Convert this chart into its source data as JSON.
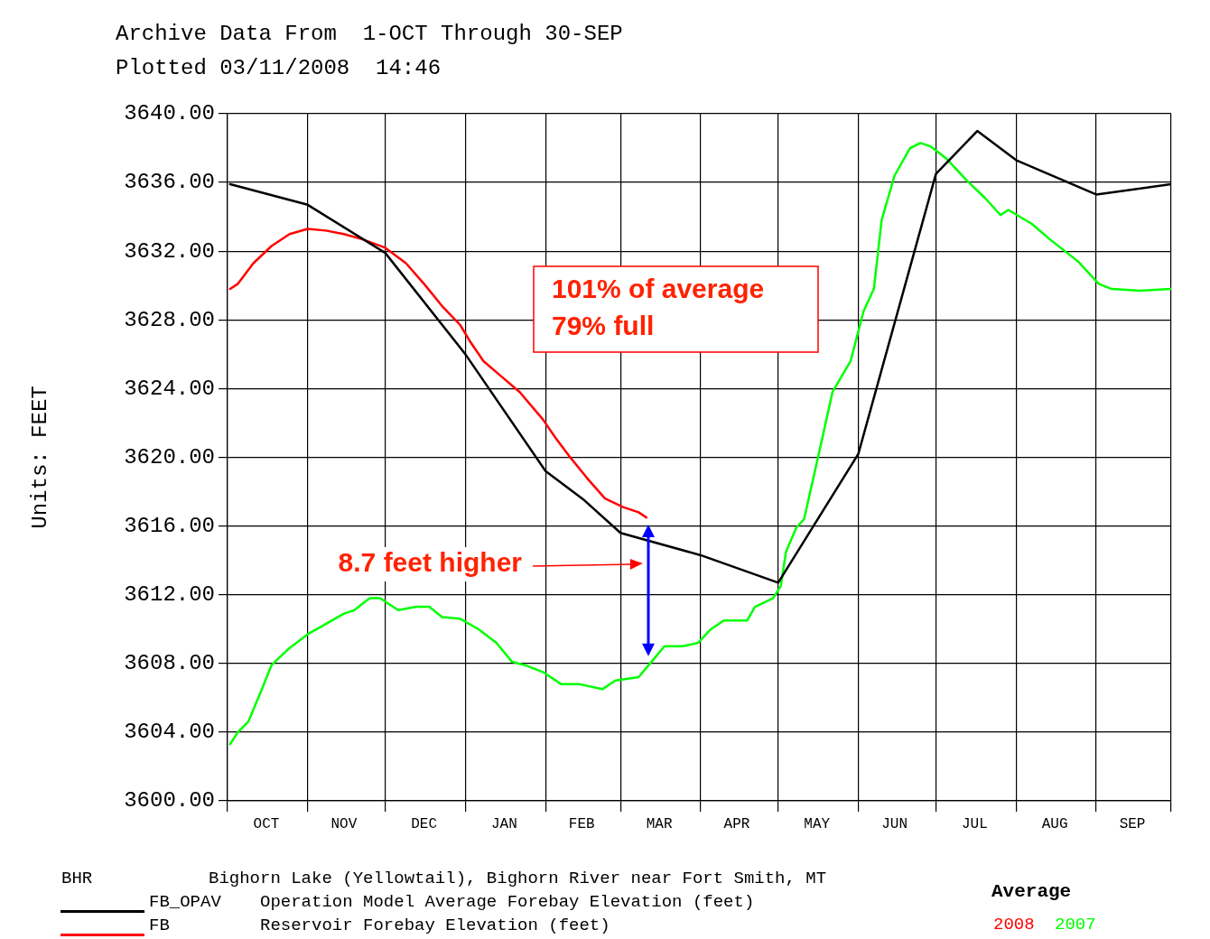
{
  "chart_data": {
    "type": "line",
    "title": "Archive Data From  1-OCT Through 30-SEP",
    "subtitle": "Plotted 03/11/2008  14:46",
    "ylabel": "Units: FEET",
    "xlim": [
      "2007-10-01",
      "2008-09-30"
    ],
    "xticks": [
      {
        "value": "2007-10-01",
        "label": null
      },
      {
        "value": "2007-10-16",
        "label": "OCT"
      },
      {
        "value": "2007-11-01",
        "label": null
      },
      {
        "value": "2007-11-15",
        "label": "NOV"
      },
      {
        "value": "2007-12-01",
        "label": null
      },
      {
        "value": "2007-12-16",
        "label": "DEC"
      },
      {
        "value": "2008-01-01",
        "label": null
      },
      {
        "value": "2008-01-16",
        "label": "JAN"
      },
      {
        "value": "2008-02-01",
        "label": null
      },
      {
        "value": "2008-02-15",
        "label": "FEB"
      },
      {
        "value": "2008-03-01",
        "label": null
      },
      {
        "value": "2008-03-16",
        "label": "MAR"
      },
      {
        "value": "2008-04-01",
        "label": null
      },
      {
        "value": "2008-04-15",
        "label": "APR"
      },
      {
        "value": "2008-05-01",
        "label": null
      },
      {
        "value": "2008-05-16",
        "label": "MAY"
      },
      {
        "value": "2008-06-01",
        "label": null
      },
      {
        "value": "2008-06-15",
        "label": "JUN"
      },
      {
        "value": "2008-07-01",
        "label": null
      },
      {
        "value": "2008-07-16",
        "label": "JUL"
      },
      {
        "value": "2008-08-01",
        "label": null
      },
      {
        "value": "2008-08-16",
        "label": "AUG"
      },
      {
        "value": "2008-09-01",
        "label": null
      },
      {
        "value": "2008-09-15",
        "label": "SEP"
      },
      {
        "value": "2008-09-30",
        "label": null
      }
    ],
    "ylim": [
      3600,
      3640
    ],
    "yticks": [
      {
        "value": 3600,
        "label": "3600.00"
      },
      {
        "value": 3604,
        "label": "3604.00"
      },
      {
        "value": 3608,
        "label": "3608.00"
      },
      {
        "value": 3612,
        "label": "3612.00"
      },
      {
        "value": 3616,
        "label": "3616.00"
      },
      {
        "value": 3620,
        "label": "3620.00"
      },
      {
        "value": 3624,
        "label": "3624.00"
      },
      {
        "value": 3628,
        "label": "3628.00"
      },
      {
        "value": 3632,
        "label": "3632.00"
      },
      {
        "value": 3636,
        "label": "3636.00"
      },
      {
        "value": 3640,
        "label": "3640.00"
      }
    ],
    "grid": true,
    "legend": "bottom",
    "marker": "none",
    "line_style": "solid",
    "series": [
      {
        "name": "FB_OPAV",
        "color": "#000000",
        "x": [
          "2007-10-02",
          "2007-11-01",
          "2007-12-01",
          "2008-01-01",
          "2008-02-01",
          "2008-02-16",
          "2008-03-01",
          "2008-04-01",
          "2008-05-01",
          "2008-06-01",
          "2008-07-01",
          "2008-07-17",
          "2008-08-01",
          "2008-09-01",
          "2008-09-30"
        ],
        "values": [
          3635.9,
          3634.7,
          3631.9,
          3626.0,
          3619.2,
          3617.5,
          3615.6,
          3614.3,
          3612.7,
          3620.2,
          3636.5,
          3639.0,
          3637.3,
          3635.3,
          3635.9
        ]
      },
      {
        "name": "FB",
        "color": "#ff0000",
        "x": [
          "2007-10-02",
          "2007-10-05",
          "2007-10-11",
          "2007-10-18",
          "2007-10-25",
          "2007-11-01",
          "2007-11-08",
          "2007-11-15",
          "2007-11-22",
          "2007-12-01",
          "2007-12-09",
          "2007-12-16",
          "2007-12-23",
          "2007-12-30",
          "2008-01-03",
          "2008-01-08",
          "2008-01-15",
          "2008-01-22",
          "2008-01-31",
          "2008-02-05",
          "2008-02-10",
          "2008-02-17",
          "2008-02-24",
          "2008-03-02",
          "2008-03-08",
          "2008-03-11"
        ],
        "values": [
          3629.8,
          3630.1,
          3631.3,
          3632.3,
          3633.0,
          3633.3,
          3633.2,
          3633.0,
          3632.7,
          3632.2,
          3631.3,
          3630.1,
          3628.8,
          3627.7,
          3626.7,
          3625.6,
          3624.7,
          3623.8,
          3622.2,
          3621.1,
          3620.1,
          3618.8,
          3617.6,
          3617.1,
          3616.8,
          3616.5
        ]
      },
      {
        "name": "2007",
        "color": "#00ff00",
        "x": [
          "2007-10-02",
          "2007-10-05",
          "2007-10-09",
          "2007-10-14",
          "2007-10-18",
          "2007-10-25",
          "2007-11-01",
          "2007-11-08",
          "2007-11-15",
          "2007-11-19",
          "2007-11-25",
          "2007-11-29",
          "2007-12-06",
          "2007-12-13",
          "2007-12-18",
          "2007-12-23",
          "2007-12-30",
          "2008-01-06",
          "2008-01-13",
          "2008-01-19",
          "2008-01-24",
          "2008-01-31",
          "2008-02-07",
          "2008-02-14",
          "2008-02-23",
          "2008-02-28",
          "2008-03-08",
          "2008-03-13",
          "2008-03-18",
          "2008-03-25",
          "2008-03-31",
          "2008-04-05",
          "2008-04-10",
          "2008-04-19",
          "2008-04-22",
          "2008-04-29",
          "2008-05-02",
          "2008-05-04",
          "2008-05-08",
          "2008-05-11",
          "2008-05-17",
          "2008-05-22",
          "2008-05-29",
          "2008-06-03",
          "2008-06-07",
          "2008-06-10",
          "2008-06-15",
          "2008-06-21",
          "2008-06-25",
          "2008-06-29",
          "2008-07-05",
          "2008-07-13",
          "2008-07-20",
          "2008-07-26",
          "2008-07-29",
          "2008-08-07",
          "2008-08-14",
          "2008-08-25",
          "2008-09-02",
          "2008-09-07",
          "2008-09-18",
          "2008-09-30"
        ],
        "values": [
          3603.3,
          3604.0,
          3604.6,
          3606.4,
          3607.9,
          3608.9,
          3609.7,
          3610.3,
          3610.9,
          3611.1,
          3611.8,
          3611.8,
          3611.1,
          3611.3,
          3611.3,
          3610.7,
          3610.6,
          3610.0,
          3609.2,
          3608.1,
          3607.9,
          3607.5,
          3606.8,
          3606.8,
          3606.5,
          3607.0,
          3607.2,
          3608.1,
          3609.0,
          3609.0,
          3609.2,
          3610.0,
          3610.5,
          3610.5,
          3611.3,
          3611.8,
          3612.5,
          3614.5,
          3615.9,
          3616.4,
          3620.4,
          3623.8,
          3625.6,
          3628.5,
          3629.8,
          3633.8,
          3636.4,
          3638.0,
          3638.3,
          3638.1,
          3637.4,
          3636.1,
          3635.1,
          3634.1,
          3634.4,
          3633.6,
          3632.7,
          3631.4,
          3630.1,
          3629.8,
          3629.7,
          3629.8
        ]
      }
    ],
    "annotations": [
      "BHR",
      "Bighorn Lake (Yellowtail), Bighorn River near Fort Smith, MT",
      "Operation Model Average Forebay Elevation (feet)",
      "Reservoir Forebay Elevation (feet)",
      "Average",
      "2008",
      "101% of average",
      "79% full",
      "8.7 feet higher"
    ]
  }
}
